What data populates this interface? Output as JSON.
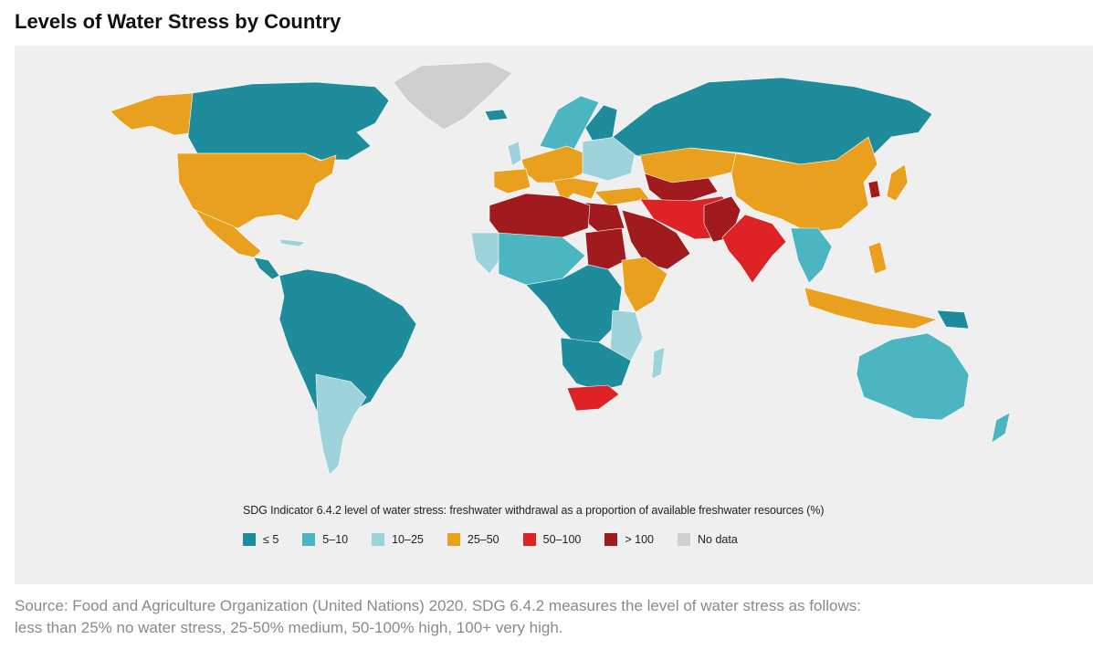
{
  "title": "Levels of Water Stress by Country",
  "colors": {
    "le5": "#1e8c9a",
    "c5_10": "#4bb6c2",
    "c10_25": "#9ed3dc",
    "c25_50": "#eaa01f",
    "c50_100": "#dd2326",
    "gt100": "#a11a1d",
    "nodata": "#cfcfcf",
    "ocean": "#efefef"
  },
  "legend": {
    "title": "SDG Indicator 6.4.2 level of water stress: freshwater withdrawal as a proportion of available freshwater resources (%)",
    "items": [
      {
        "label": "≤ 5",
        "color": "#1e8c9a"
      },
      {
        "label": "5–10",
        "color": "#4bb6c2"
      },
      {
        "label": "10–25",
        "color": "#9ed3dc"
      },
      {
        "label": "25–50",
        "color": "#eaa01f"
      },
      {
        "label": "50–100",
        "color": "#dd2326"
      },
      {
        "label": "> 100",
        "color": "#a11a1d"
      },
      {
        "label": "No data",
        "color": "#cfcfcf"
      }
    ]
  },
  "source_line1": "Source: Food and Agriculture Organization (United Nations) 2020.  SDG 6.4.2 measures the level of water stress as follows:",
  "source_line2": "less than 25% no water stress, 25-50% medium, 50-100% high, 100+ very high."
}
